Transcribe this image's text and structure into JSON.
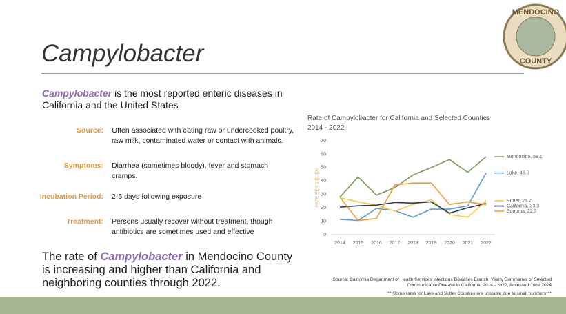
{
  "title": "Campylobacter",
  "logo": {
    "top": "MENDOCINO",
    "bottom": "COUNTY"
  },
  "intro": {
    "emphasis": "Campylobacter",
    "text": " is the most reported enteric diseases in California and the United States"
  },
  "details": [
    {
      "label": "Source:",
      "text": "Often associated with eating raw or undercooked poultry, raw milk, contaminated water or contact with animals."
    },
    {
      "label": "Symptoms:",
      "text": "Diarrhea (sometimes bloody), fever and stomach cramps."
    },
    {
      "label": "Incubation Period:",
      "text": "2-5 days following exposure"
    },
    {
      "label": "Treatment:",
      "text": "Persons usually recover without treatment, though antibiotics are sometimes used and effective"
    }
  ],
  "conclusion": {
    "before": "The rate of ",
    "emphasis": "Campylobacter",
    "after": " in Mendocino County is increasing and higher than California and neighboring counties through 2022."
  },
  "chart_data": {
    "type": "line",
    "title": "Rate of Campylobacter for California and Selected Counties 2014 - 2022",
    "y_label": "RATE PER 100,000",
    "x": [
      2014,
      2015,
      2016,
      2017,
      2018,
      2019,
      2020,
      2021,
      2022
    ],
    "xlim": [
      2014,
      2022
    ],
    "ylim": [
      0,
      70
    ],
    "yticks": [
      0,
      10,
      20,
      30,
      40,
      50,
      60,
      70
    ],
    "grid": false,
    "series": [
      {
        "name": "Mendocino, 58.1",
        "color": "#7a9a5a",
        "values": [
          28,
          43,
          29.5,
          35,
          44.5,
          50,
          56,
          46.5,
          58.1
        ]
      },
      {
        "name": "Lake, 46.0",
        "color": "#5b9bd5",
        "values": [
          11.5,
          10.5,
          19.5,
          18,
          13,
          19,
          19,
          21.5,
          46.0
        ]
      },
      {
        "name": "Sutter, 25.2",
        "color": "#ffc93c",
        "values": [
          27.5,
          24.5,
          22,
          17.5,
          22.5,
          26,
          15,
          13,
          25.2
        ]
      },
      {
        "name": "California, 23.3",
        "color": "#263b5e",
        "values": [
          20.5,
          21.5,
          22,
          24,
          23.5,
          24.5,
          16,
          20,
          23.3
        ]
      },
      {
        "name": "Sonoma, 22.3",
        "color": "#f0a030",
        "values": [
          28,
          10.5,
          12,
          37,
          38.5,
          38.5,
          22.5,
          24.5,
          22.3
        ]
      }
    ]
  },
  "source": "Source: California Department of Health Services Infectious Diseases Branch, Yearly Summaries of Selected Communicable Disease in California, 2014 - 2022, Accessed June 2024",
  "footnote": "***Some rates for Lake and Sutter Counties are unstable due to small numbers***"
}
